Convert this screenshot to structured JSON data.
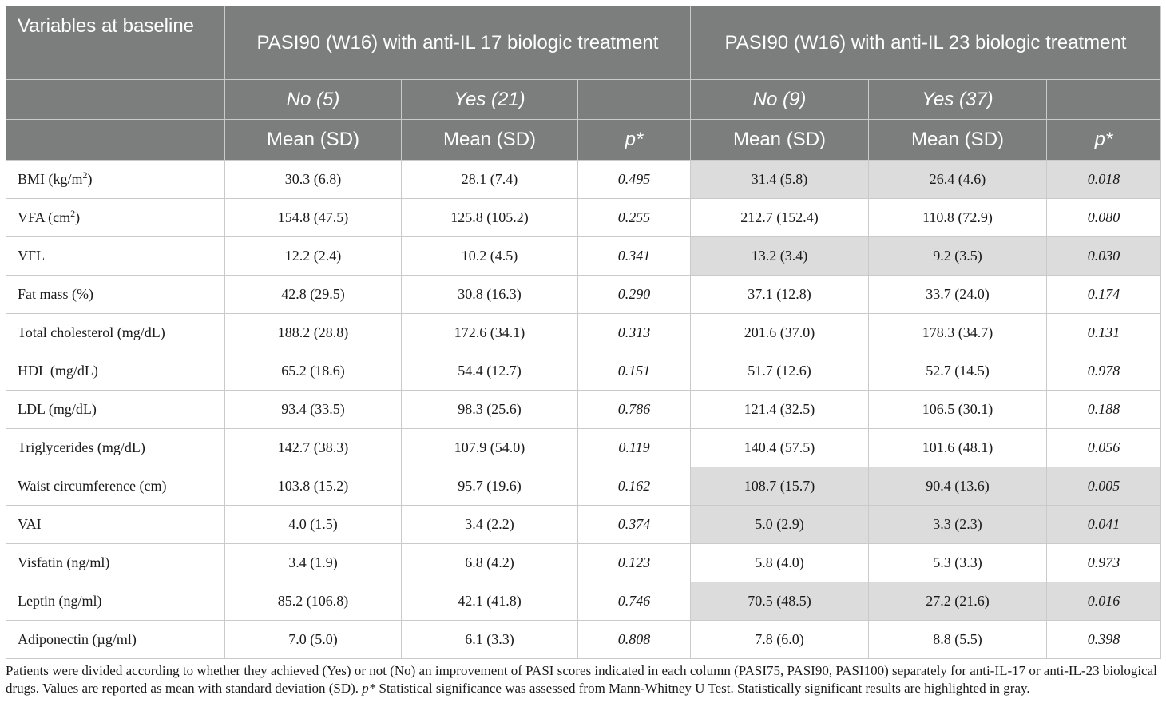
{
  "header": {
    "lead_label": "Variables at baseline",
    "group_il17": "PASI90 (W16) with anti-IL 17 biologic treatment",
    "group_il23": "PASI90 (W16) with anti-IL 23 biologic treatment",
    "il17_no": "No (5)",
    "il17_yes": "Yes (21)",
    "il23_no": "No (9)",
    "il23_yes": "Yes (37)",
    "mean_sd": "Mean (SD)",
    "p_label": "p*"
  },
  "rows": [
    {
      "label": "BMI (kg/m",
      "sup": "2",
      "label_end": ")",
      "il17_no": "30.3 (6.8)",
      "il17_yes": "28.1 (7.4)",
      "il17_p": "0.495",
      "il23_no": "31.4 (5.8)",
      "il23_yes": "26.4 (4.6)",
      "il23_p": "0.018",
      "significant": true
    },
    {
      "label": "VFA (cm",
      "sup": "2",
      "label_end": ")",
      "il17_no": "154.8 (47.5)",
      "il17_yes": "125.8 (105.2)",
      "il17_p": "0.255",
      "il23_no": "212.7 (152.4)",
      "il23_yes": "110.8 (72.9)",
      "il23_p": "0.080",
      "significant": false
    },
    {
      "label": "VFL",
      "sup": "",
      "label_end": "",
      "il17_no": "12.2 (2.4)",
      "il17_yes": "10.2 (4.5)",
      "il17_p": "0.341",
      "il23_no": "13.2 (3.4)",
      "il23_yes": "9.2 (3.5)",
      "il23_p": "0.030",
      "significant": true
    },
    {
      "label": "Fat mass (%)",
      "sup": "",
      "label_end": "",
      "il17_no": "42.8 (29.5)",
      "il17_yes": "30.8 (16.3)",
      "il17_p": "0.290",
      "il23_no": "37.1 (12.8)",
      "il23_yes": "33.7 (24.0)",
      "il23_p": "0.174",
      "significant": false
    },
    {
      "label": "Total cholesterol (mg/dL)",
      "sup": "",
      "label_end": "",
      "il17_no": "188.2 (28.8)",
      "il17_yes": "172.6 (34.1)",
      "il17_p": "0.313",
      "il23_no": "201.6 (37.0)",
      "il23_yes": "178.3 (34.7)",
      "il23_p": "0.131",
      "significant": false
    },
    {
      "label": "HDL (mg/dL)",
      "sup": "",
      "label_end": "",
      "il17_no": "65.2 (18.6)",
      "il17_yes": "54.4 (12.7)",
      "il17_p": "0.151",
      "il23_no": "51.7 (12.6)",
      "il23_yes": "52.7 (14.5)",
      "il23_p": "0.978",
      "significant": false
    },
    {
      "label": "LDL (mg/dL)",
      "sup": "",
      "label_end": "",
      "il17_no": "93.4 (33.5)",
      "il17_yes": "98.3 (25.6)",
      "il17_p": "0.786",
      "il23_no": "121.4 (32.5)",
      "il23_yes": "106.5 (30.1)",
      "il23_p": "0.188",
      "significant": false
    },
    {
      "label": "Triglycerides (mg/dL)",
      "sup": "",
      "label_end": "",
      "il17_no": "142.7 (38.3)",
      "il17_yes": "107.9 (54.0)",
      "il17_p": "0.119",
      "il23_no": "140.4 (57.5)",
      "il23_yes": "101.6 (48.1)",
      "il23_p": "0.056",
      "significant": false
    },
    {
      "label": "Waist circumference (cm)",
      "sup": "",
      "label_end": "",
      "il17_no": "103.8 (15.2)",
      "il17_yes": "95.7 (19.6)",
      "il17_p": "0.162",
      "il23_no": "108.7 (15.7)",
      "il23_yes": "90.4 (13.6)",
      "il23_p": "0.005",
      "significant": true
    },
    {
      "label": "VAI",
      "sup": "",
      "label_end": "",
      "il17_no": "4.0 (1.5)",
      "il17_yes": "3.4 (2.2)",
      "il17_p": "0.374",
      "il23_no": "5.0 (2.9)",
      "il23_yes": "3.3 (2.3)",
      "il23_p": "0.041",
      "significant": true
    },
    {
      "label": "Visfatin (ng/ml)",
      "sup": "",
      "label_end": "",
      "il17_no": "3.4 (1.9)",
      "il17_yes": "6.8 (4.2)",
      "il17_p": "0.123",
      "il23_no": "5.8 (4.0)",
      "il23_yes": "5.3 (3.3)",
      "il23_p": "0.973",
      "significant": false
    },
    {
      "label": "Leptin (ng/ml)",
      "sup": "",
      "label_end": "",
      "il17_no": "85.2 (106.8)",
      "il17_yes": "42.1 (41.8)",
      "il17_p": "0.746",
      "il23_no": "70.5 (48.5)",
      "il23_yes": "27.2 (21.6)",
      "il23_p": "0.016",
      "significant": true
    },
    {
      "label": "Adiponectin (µg/ml)",
      "sup": "",
      "label_end": "",
      "il17_no": "7.0 (5.0)",
      "il17_yes": "6.1 (3.3)",
      "il17_p": "0.808",
      "il23_no": "7.8 (6.0)",
      "il23_yes": "8.8 (5.5)",
      "il23_p": "0.398",
      "significant": false
    }
  ],
  "footnote": {
    "part1": "Patients were divided according to whether they achieved (Yes) or not (No) an improvement of PASI scores indicated in each column (PASI75, PASI90, PASI100) separately for anti-IL-17 or anti-IL-23 biological drugs. Values are reported as mean with standard deviation (SD). ",
    "p_symbol": "p*",
    "part2": " Statistical significance was assessed from Mann-Whitney U Test. Statistically significant results are highlighted in gray."
  },
  "colors": {
    "header_bg": "#7b7e7c",
    "highlight_bg": "#dcdcdc",
    "grid_line": "#c9cac9"
  }
}
